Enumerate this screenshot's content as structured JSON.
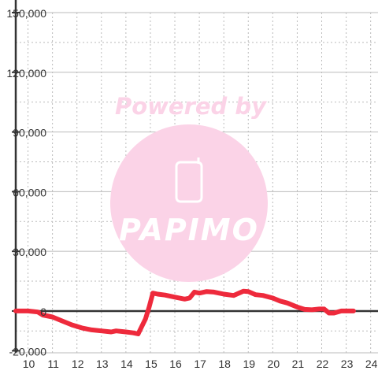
{
  "chart_data": {
    "type": "line",
    "title": "",
    "xlabel": "",
    "ylabel": "",
    "xlim": [
      9.5,
      24.3
    ],
    "ylim": [
      -21000,
      150000
    ],
    "x_ticks": [
      10,
      11,
      12,
      13,
      14,
      15,
      16,
      17,
      18,
      19,
      20,
      21,
      22,
      23,
      24
    ],
    "y_ticks": [
      {
        "value": -20000,
        "label": "-20,000"
      },
      {
        "value": 0,
        "label": "0"
      },
      {
        "value": 30000,
        "label": "30,000"
      },
      {
        "value": 60000,
        "label": "60,000"
      },
      {
        "value": 90000,
        "label": "90,000"
      },
      {
        "value": 120000,
        "label": "120,000"
      },
      {
        "value": 150000,
        "label": "150,000"
      }
    ],
    "grid": true,
    "colors": {
      "line": "#ee2a3c",
      "axis": "#333333",
      "grid": "#bbbbbb",
      "watermark": "#fbd3e7"
    },
    "series": [
      {
        "name": "",
        "x": [
          9.5,
          10.0,
          10.4,
          10.6,
          11.0,
          11.4,
          11.8,
          12.2,
          12.6,
          13.0,
          13.4,
          13.6,
          14.0,
          14.3,
          14.5,
          14.6,
          14.8,
          14.95,
          15.1,
          15.3,
          15.6,
          16.0,
          16.4,
          16.6,
          16.8,
          17.0,
          17.3,
          17.6,
          18.0,
          18.4,
          18.8,
          19.0,
          19.3,
          19.6,
          20.0,
          20.3,
          20.6,
          21.0,
          21.3,
          21.6,
          21.9,
          22.1,
          22.3,
          22.5,
          22.8,
          23.0,
          23.3
        ],
        "y": [
          0,
          0,
          -500,
          -2000,
          -3000,
          -5000,
          -7000,
          -8500,
          -9500,
          -10000,
          -10500,
          -10000,
          -10500,
          -11000,
          -11500,
          -9000,
          -4000,
          2000,
          9000,
          8500,
          8000,
          7000,
          6000,
          6500,
          9500,
          9000,
          9800,
          9500,
          8500,
          7800,
          10000,
          9800,
          8200,
          7800,
          6500,
          5000,
          4000,
          2000,
          800,
          600,
          1000,
          1000,
          -1000,
          -1000,
          0,
          0,
          0
        ]
      }
    ]
  },
  "watermark": {
    "line1": "Powered by",
    "brand": "PAPIMO"
  }
}
